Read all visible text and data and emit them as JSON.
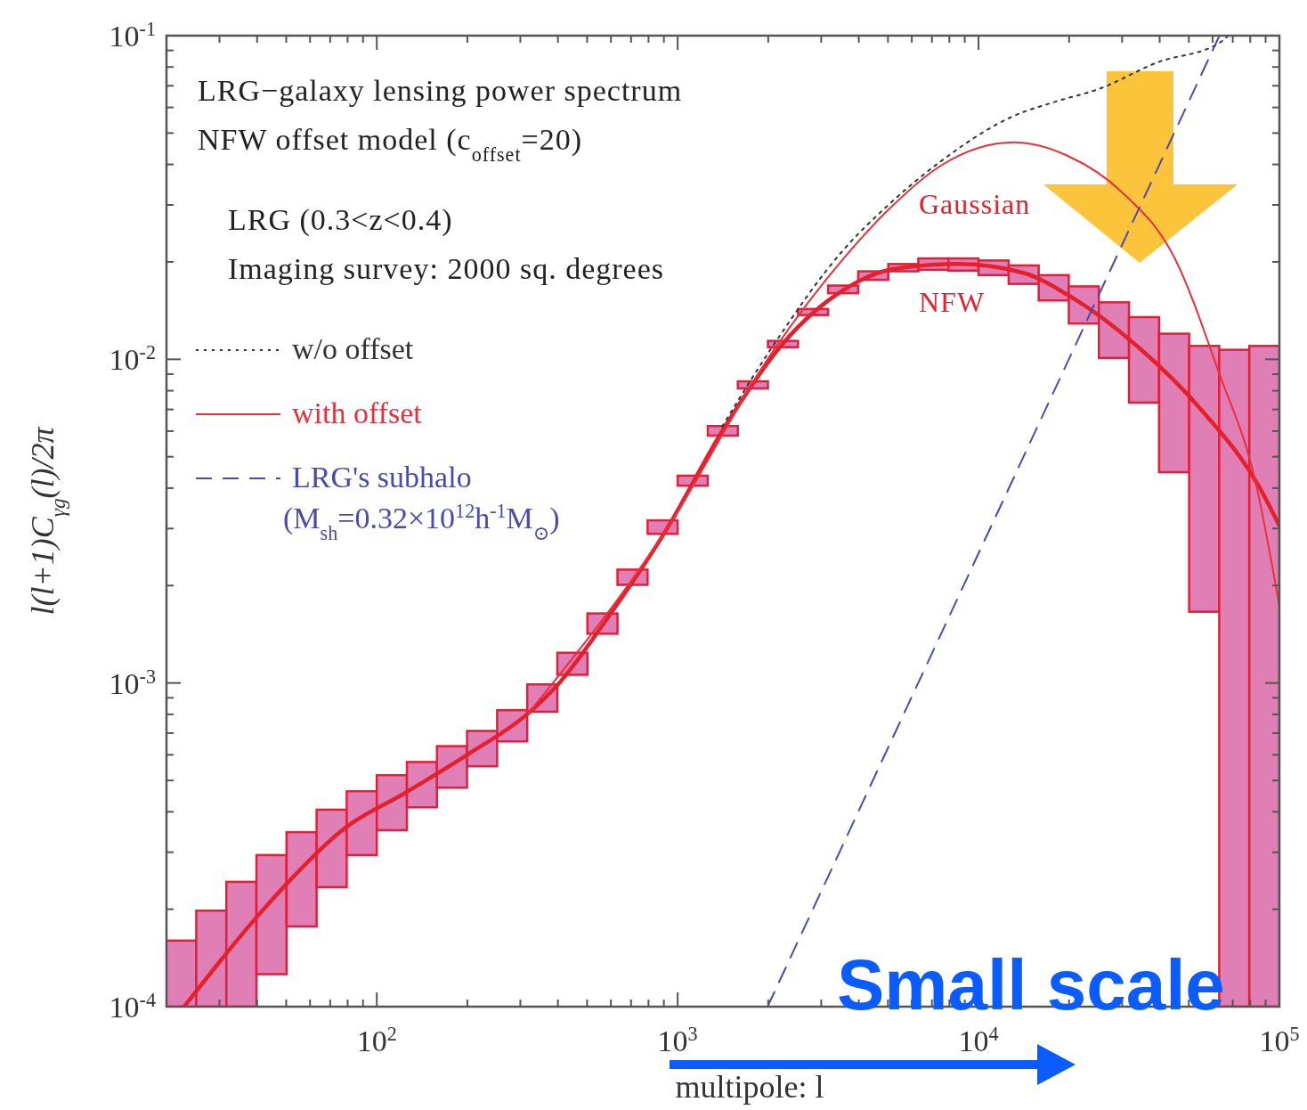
{
  "chart_data": {
    "type": "line",
    "xlabel": "multipole: l",
    "ylabel": "l(l+1)C$_{γg}$(l)/2π",
    "log": "xy",
    "xlim": [
      20,
      100000
    ],
    "ylim": [
      0.0001,
      0.1
    ],
    "xticks": [
      {
        "value": 30,
        "label": null
      },
      {
        "value": 40,
        "label": null
      },
      {
        "value": 50,
        "label": null
      },
      {
        "value": 60,
        "label": null
      },
      {
        "value": 70,
        "label": null
      },
      {
        "value": 80,
        "label": null
      },
      {
        "value": 90,
        "label": null
      },
      {
        "value": 100,
        "label": "10$^{2}$"
      },
      {
        "value": 200,
        "label": null
      },
      {
        "value": 300,
        "label": null
      },
      {
        "value": 400,
        "label": null
      },
      {
        "value": 500,
        "label": null
      },
      {
        "value": 600,
        "label": null
      },
      {
        "value": 700,
        "label": null
      },
      {
        "value": 800,
        "label": null
      },
      {
        "value": 900,
        "label": null
      },
      {
        "value": 1000,
        "label": "10$^{3}$"
      },
      {
        "value": 2000,
        "label": null
      },
      {
        "value": 3000,
        "label": null
      },
      {
        "value": 4000,
        "label": null
      },
      {
        "value": 5000,
        "label": null
      },
      {
        "value": 6000,
        "label": null
      },
      {
        "value": 7000,
        "label": null
      },
      {
        "value": 8000,
        "label": null
      },
      {
        "value": 9000,
        "label": null
      },
      {
        "value": 10000,
        "label": "10$^{4}$"
      },
      {
        "value": 20000,
        "label": null
      },
      {
        "value": 30000,
        "label": null
      },
      {
        "value": 40000,
        "label": null
      },
      {
        "value": 50000,
        "label": null
      },
      {
        "value": 60000,
        "label": null
      },
      {
        "value": 70000,
        "label": null
      },
      {
        "value": 80000,
        "label": null
      },
      {
        "value": 90000,
        "label": null
      },
      {
        "value": 100000,
        "label": "10$^{5}$"
      }
    ],
    "yticks": [
      {
        "value": 0.0001,
        "label": "10$^{-4}$"
      },
      {
        "value": 0.0002,
        "label": null
      },
      {
        "value": 0.0003,
        "label": null
      },
      {
        "value": 0.0004,
        "label": null
      },
      {
        "value": 0.0005,
        "label": null
      },
      {
        "value": 0.0006,
        "label": null
      },
      {
        "value": 0.0007,
        "label": null
      },
      {
        "value": 0.0008,
        "label": null
      },
      {
        "value": 0.0009,
        "label": null
      },
      {
        "value": 0.001,
        "label": "10$^{-3}$"
      },
      {
        "value": 0.002,
        "label": null
      },
      {
        "value": 0.003,
        "label": null
      },
      {
        "value": 0.004,
        "label": null
      },
      {
        "value": 0.005,
        "label": null
      },
      {
        "value": 0.006,
        "label": null
      },
      {
        "value": 0.007,
        "label": null
      },
      {
        "value": 0.008,
        "label": null
      },
      {
        "value": 0.009,
        "label": null
      },
      {
        "value": 0.01,
        "label": "10$^{-2}$"
      },
      {
        "value": 0.02,
        "label": null
      },
      {
        "value": 0.03,
        "label": null
      },
      {
        "value": 0.04,
        "label": null
      },
      {
        "value": 0.05,
        "label": null
      },
      {
        "value": 0.06,
        "label": null
      },
      {
        "value": 0.07,
        "label": null
      },
      {
        "value": 0.08,
        "label": null
      },
      {
        "value": 0.09,
        "label": null
      },
      {
        "value": 0.1,
        "label": "10$^{-1}$"
      }
    ],
    "grid": false,
    "legend": "left",
    "annotations": [
      "LRG−galaxy lensing power spectrum",
      "NFW offset model (c$_{offset}$=20)",
      "LRG (0.3<z<0.4)",
      "Imaging survey: 2000 sq. degrees",
      "Small scale",
      "Gaussian",
      "NFW"
    ],
    "series": [
      {
        "type": "bar",
        "color": "#e07fb5",
        "x": [
          22.39,
          28.18,
          35.48,
          44.67,
          56.23,
          70.79,
          89.13,
          112.2,
          141.3,
          177.8,
          223.9,
          281.8,
          354.8,
          446.7,
          562.3,
          707.9,
          891.3,
          1122,
          1413,
          1778,
          2239,
          2818,
          3548,
          4467,
          5623,
          7079,
          8913,
          11220,
          14130,
          17780,
          22390,
          28180,
          35480,
          44670,
          56230,
          70790,
          89130
        ],
        "base": [
          0.0001,
          0.0001,
          0.0001,
          0.000126,
          0.000177,
          0.000234,
          0.000294,
          0.000351,
          0.000413,
          0.000475,
          0.000553,
          0.00066,
          0.000815,
          0.00106,
          0.00142,
          0.00201,
          0.00289,
          0.00407,
          0.00581,
          0.00813,
          0.0109,
          0.0137,
          0.016,
          0.0176,
          0.0187,
          0.0189,
          0.0188,
          0.0182,
          0.0171,
          0.0152,
          0.0129,
          0.0101,
          0.00735,
          0.00448,
          0.00166,
          0.0001,
          0.0001
        ],
        "values": [
          6e-05,
          9.8e-05,
          0.000143,
          0.000168,
          0.000169,
          0.000172,
          0.000169,
          0.000168,
          0.000157,
          0.000163,
          0.000158,
          0.000164,
          0.000175,
          0.00018,
          0.00022,
          0.00023,
          0.00029,
          0.0003,
          0.00041,
          0.00042,
          0.0005,
          0.0006,
          0.0009,
          0.0011,
          0.001,
          0.0016,
          0.0017,
          0.002,
          0.0024,
          0.003,
          0.0039,
          0.0049,
          0.00615,
          0.00752,
          0.00934,
          0.0106,
          0.0109
        ]
      },
      {
        "color": "#e3202c",
        "x": [
          22.9,
          38.3,
          49,
          78,
          124,
          198,
          320,
          404,
          577,
          920,
          1406,
          2240,
          3570,
          5210,
          8530,
          14060,
          20500,
          33600,
          55400,
          85900,
          100000
        ],
        "values": [
          0.0001,
          0.000181,
          0.000234,
          0.000355,
          0.000457,
          0.000597,
          0.000809,
          0.001,
          0.00156,
          0.00299,
          0.006,
          0.0112,
          0.0164,
          0.019,
          0.0197,
          0.0185,
          0.0155,
          0.011,
          0.00693,
          0.00402,
          0.00306
        ]
      },
      {
        "name": "w/o offset",
        "color": "#333333",
        "line_style": "dotted",
        "x": [
          1406,
          2060,
          3560,
          5020,
          7570,
          13100,
          18000,
          25100,
          39200,
          63200,
          67600
        ],
        "values": [
          0.0062,
          0.0109,
          0.0218,
          0.03,
          0.0412,
          0.0565,
          0.0625,
          0.0684,
          0.0826,
          0.095,
          0.1
        ]
      },
      {
        "name": "with offset",
        "color": "#e8303c",
        "x": [
          320,
          920,
          2060,
          3560,
          5020,
          7570,
          13100,
          19800,
          29800,
          44900,
          63200,
          83200,
          100000
        ],
        "values": [
          0.000809,
          0.00299,
          0.0105,
          0.0205,
          0.029,
          0.0399,
          0.0468,
          0.0425,
          0.033,
          0.0205,
          0.009,
          0.0042,
          0.00173
        ]
      },
      {
        "name": "LRG's subhalo\n(M$_{sh}$=0.32×10$^{12}$h$^{-1}$M$_{⊙}$)",
        "color": "#4a4aaa",
        "line_style": "dashed",
        "x": [
          1990,
          63200
        ],
        "values": [
          0.0001,
          0.1
        ]
      }
    ]
  }
}
